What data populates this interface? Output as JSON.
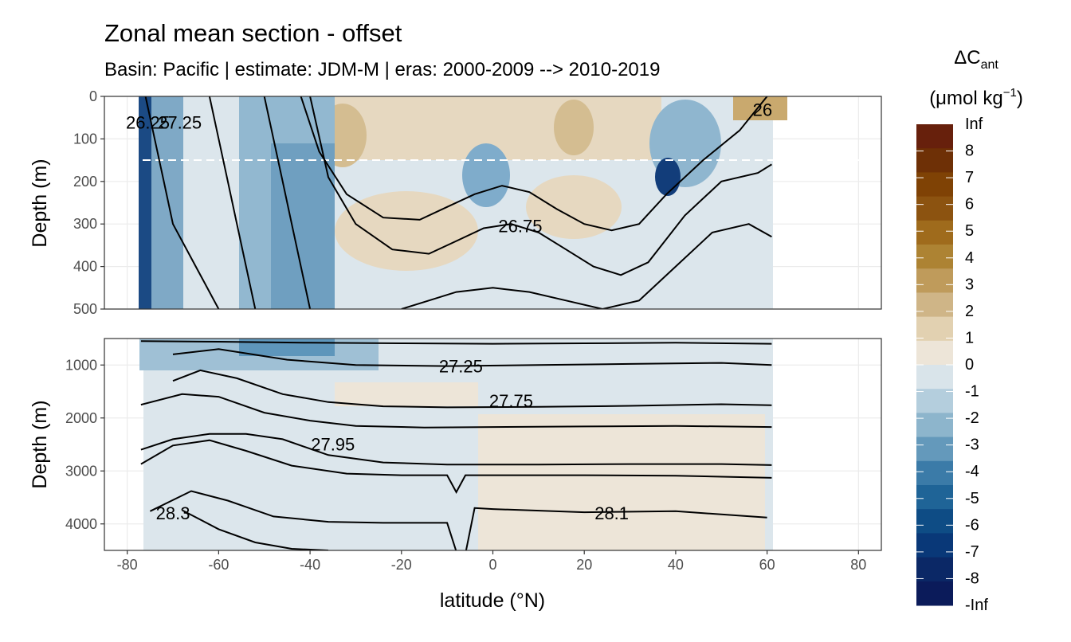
{
  "chart_data": {
    "type": "heatmap",
    "title": "Zonal mean section - offset",
    "subtitle": "Basin: Pacific | estimate: JDM-M | eras: 2000-2009 --> 2010-2019",
    "xlabel": "latitude (°N)",
    "ylabel": "Depth (m)",
    "xlim": [
      -85,
      85
    ],
    "x_ticks": [
      -80,
      -60,
      -40,
      -20,
      0,
      20,
      40,
      60,
      80
    ],
    "panels": [
      {
        "name": "upper",
        "ylim": [
          0,
          500
        ],
        "y_ticks": [
          0,
          100,
          200,
          300,
          400,
          500
        ],
        "dashed_line_depth": 150
      },
      {
        "name": "lower",
        "ylim": [
          500,
          4500
        ],
        "y_ticks": [
          1000,
          2000,
          3000,
          4000
        ]
      }
    ],
    "contour_labels": [
      {
        "panel": "upper",
        "text": "26",
        "lat": 59,
        "depth": 32
      },
      {
        "panel": "upper",
        "text": "26.75",
        "lat": 6,
        "depth": 305
      },
      {
        "panel": "upper",
        "text": "26.25",
        "lat": -75.5,
        "depth": 62
      },
      {
        "panel": "upper",
        "text": "27.25",
        "lat": -68.5,
        "depth": 62
      },
      {
        "panel": "lower",
        "text": "27.25",
        "lat": -7,
        "depth": 1030
      },
      {
        "panel": "lower",
        "text": "27.75",
        "lat": 4,
        "depth": 1680
      },
      {
        "panel": "lower",
        "text": "27.95",
        "lat": -35,
        "depth": 2500
      },
      {
        "panel": "lower",
        "text": "28.3",
        "lat": -70,
        "depth": 3800
      },
      {
        "panel": "lower",
        "text": "28.1",
        "lat": 26,
        "depth": 3800
      }
    ],
    "isopycnals": {
      "upper": [
        {
          "lat": [
            -76,
            -74,
            -72,
            -70,
            -65,
            -60
          ],
          "depth": [
            0,
            100,
            200,
            300,
            400,
            500
          ]
        },
        {
          "lat": [
            -62,
            -60,
            -58,
            -56,
            -54,
            -52
          ],
          "depth": [
            0,
            100,
            200,
            300,
            400,
            500
          ]
        },
        {
          "lat": [
            -50,
            -48,
            -46,
            -44,
            -42,
            -40
          ],
          "depth": [
            0,
            100,
            200,
            300,
            400,
            500
          ]
        },
        {
          "lat": [
            -42,
            -38,
            -32,
            -24,
            -16,
            -10,
            -4,
            2,
            8,
            14,
            20,
            26,
            32,
            38,
            46,
            54,
            60
          ],
          "depth": [
            0,
            130,
            230,
            285,
            290,
            260,
            230,
            210,
            225,
            265,
            300,
            315,
            300,
            230,
            150,
            80,
            0
          ]
        },
        {
          "lat": [
            -40,
            -36,
            -30,
            -22,
            -14,
            -8,
            -2,
            4,
            10,
            16,
            22,
            28,
            34,
            42,
            50,
            58,
            61
          ],
          "depth": [
            0,
            190,
            300,
            360,
            370,
            340,
            310,
            300,
            320,
            360,
            400,
            420,
            390,
            280,
            200,
            180,
            160
          ]
        },
        {
          "lat": [
            -20,
            -14,
            -8,
            0,
            8,
            16,
            24,
            32,
            40,
            48,
            56,
            61
          ],
          "depth": [
            500,
            480,
            460,
            450,
            460,
            480,
            500,
            480,
            400,
            320,
            300,
            330
          ]
        }
      ],
      "lower": [
        {
          "lat": [
            -77,
            -60,
            -40,
            -20,
            0,
            20,
            40,
            61
          ],
          "depth": [
            550,
            560,
            580,
            590,
            600,
            590,
            580,
            600
          ]
        },
        {
          "lat": [
            -70,
            -60,
            -45,
            -30,
            -10,
            10,
            30,
            50,
            61
          ],
          "depth": [
            800,
            700,
            900,
            1000,
            1020,
            1000,
            980,
            960,
            1000
          ]
        },
        {
          "lat": [
            -70,
            -64,
            -56,
            -46,
            -36,
            -24,
            -10,
            10,
            30,
            50,
            61
          ],
          "depth": [
            1300,
            1100,
            1250,
            1550,
            1700,
            1780,
            1800,
            1790,
            1770,
            1740,
            1760
          ]
        },
        {
          "lat": [
            -77,
            -68,
            -60,
            -50,
            -40,
            -30,
            -15,
            0,
            20,
            40,
            61
          ],
          "depth": [
            1750,
            1550,
            1600,
            1900,
            2050,
            2150,
            2180,
            2170,
            2160,
            2150,
            2170
          ]
        },
        {
          "lat": [
            -77,
            -70,
            -62,
            -54,
            -46,
            -36,
            -24,
            -10,
            10,
            30,
            50,
            61
          ],
          "depth": [
            2600,
            2400,
            2300,
            2300,
            2400,
            2700,
            2840,
            2880,
            2880,
            2870,
            2870,
            2890
          ]
        },
        {
          "lat": [
            -77,
            -70,
            -62,
            -54,
            -44,
            -32,
            -20,
            -10,
            -8,
            -6,
            0,
            20,
            40,
            61
          ],
          "depth": [
            2870,
            2520,
            2420,
            2620,
            2900,
            3050,
            3080,
            3080,
            3400,
            3080,
            3080,
            3080,
            3090,
            3130
          ]
        },
        {
          "lat": [
            -75,
            -66,
            -58,
            -48,
            -36,
            -24,
            -10,
            -8,
            -6,
            -4,
            0,
            20,
            40,
            60
          ],
          "depth": [
            3760,
            3380,
            3560,
            3860,
            3960,
            3980,
            3980,
            4520,
            4560,
            3700,
            3720,
            3780,
            3760,
            3880
          ]
        },
        {
          "lat": [
            -68,
            -60,
            -52,
            -44,
            -36
          ],
          "depth": [
            3740,
            4100,
            4350,
            4470,
            4500
          ]
        }
      ]
    },
    "legend": {
      "title_main": "ΔC",
      "title_sub": "ant",
      "units_prefix": "(μmol kg",
      "units_sup": "−1",
      "units_suffix": ")",
      "labels": [
        "Inf",
        "8",
        "7",
        "6",
        "5",
        "4",
        "3",
        "2",
        "1",
        "0",
        "-1",
        "-2",
        "-3",
        "-4",
        "-5",
        "-6",
        "-7",
        "-8",
        "-Inf"
      ],
      "colors": [
        "#67200c",
        "#6e3006",
        "#7f4205",
        "#8c5310",
        "#9f6b1c",
        "#ad8333",
        "#bf9b5b",
        "#cfb587",
        "#e2d1b1",
        "#ede5d8",
        "#d9e4ea",
        "#b4cedd",
        "#8db5cc",
        "#6499bb",
        "#3b7ba8",
        "#1f6497",
        "#0e4c85",
        "#093878",
        "#0b2866",
        "#0b1b5a"
      ]
    }
  }
}
